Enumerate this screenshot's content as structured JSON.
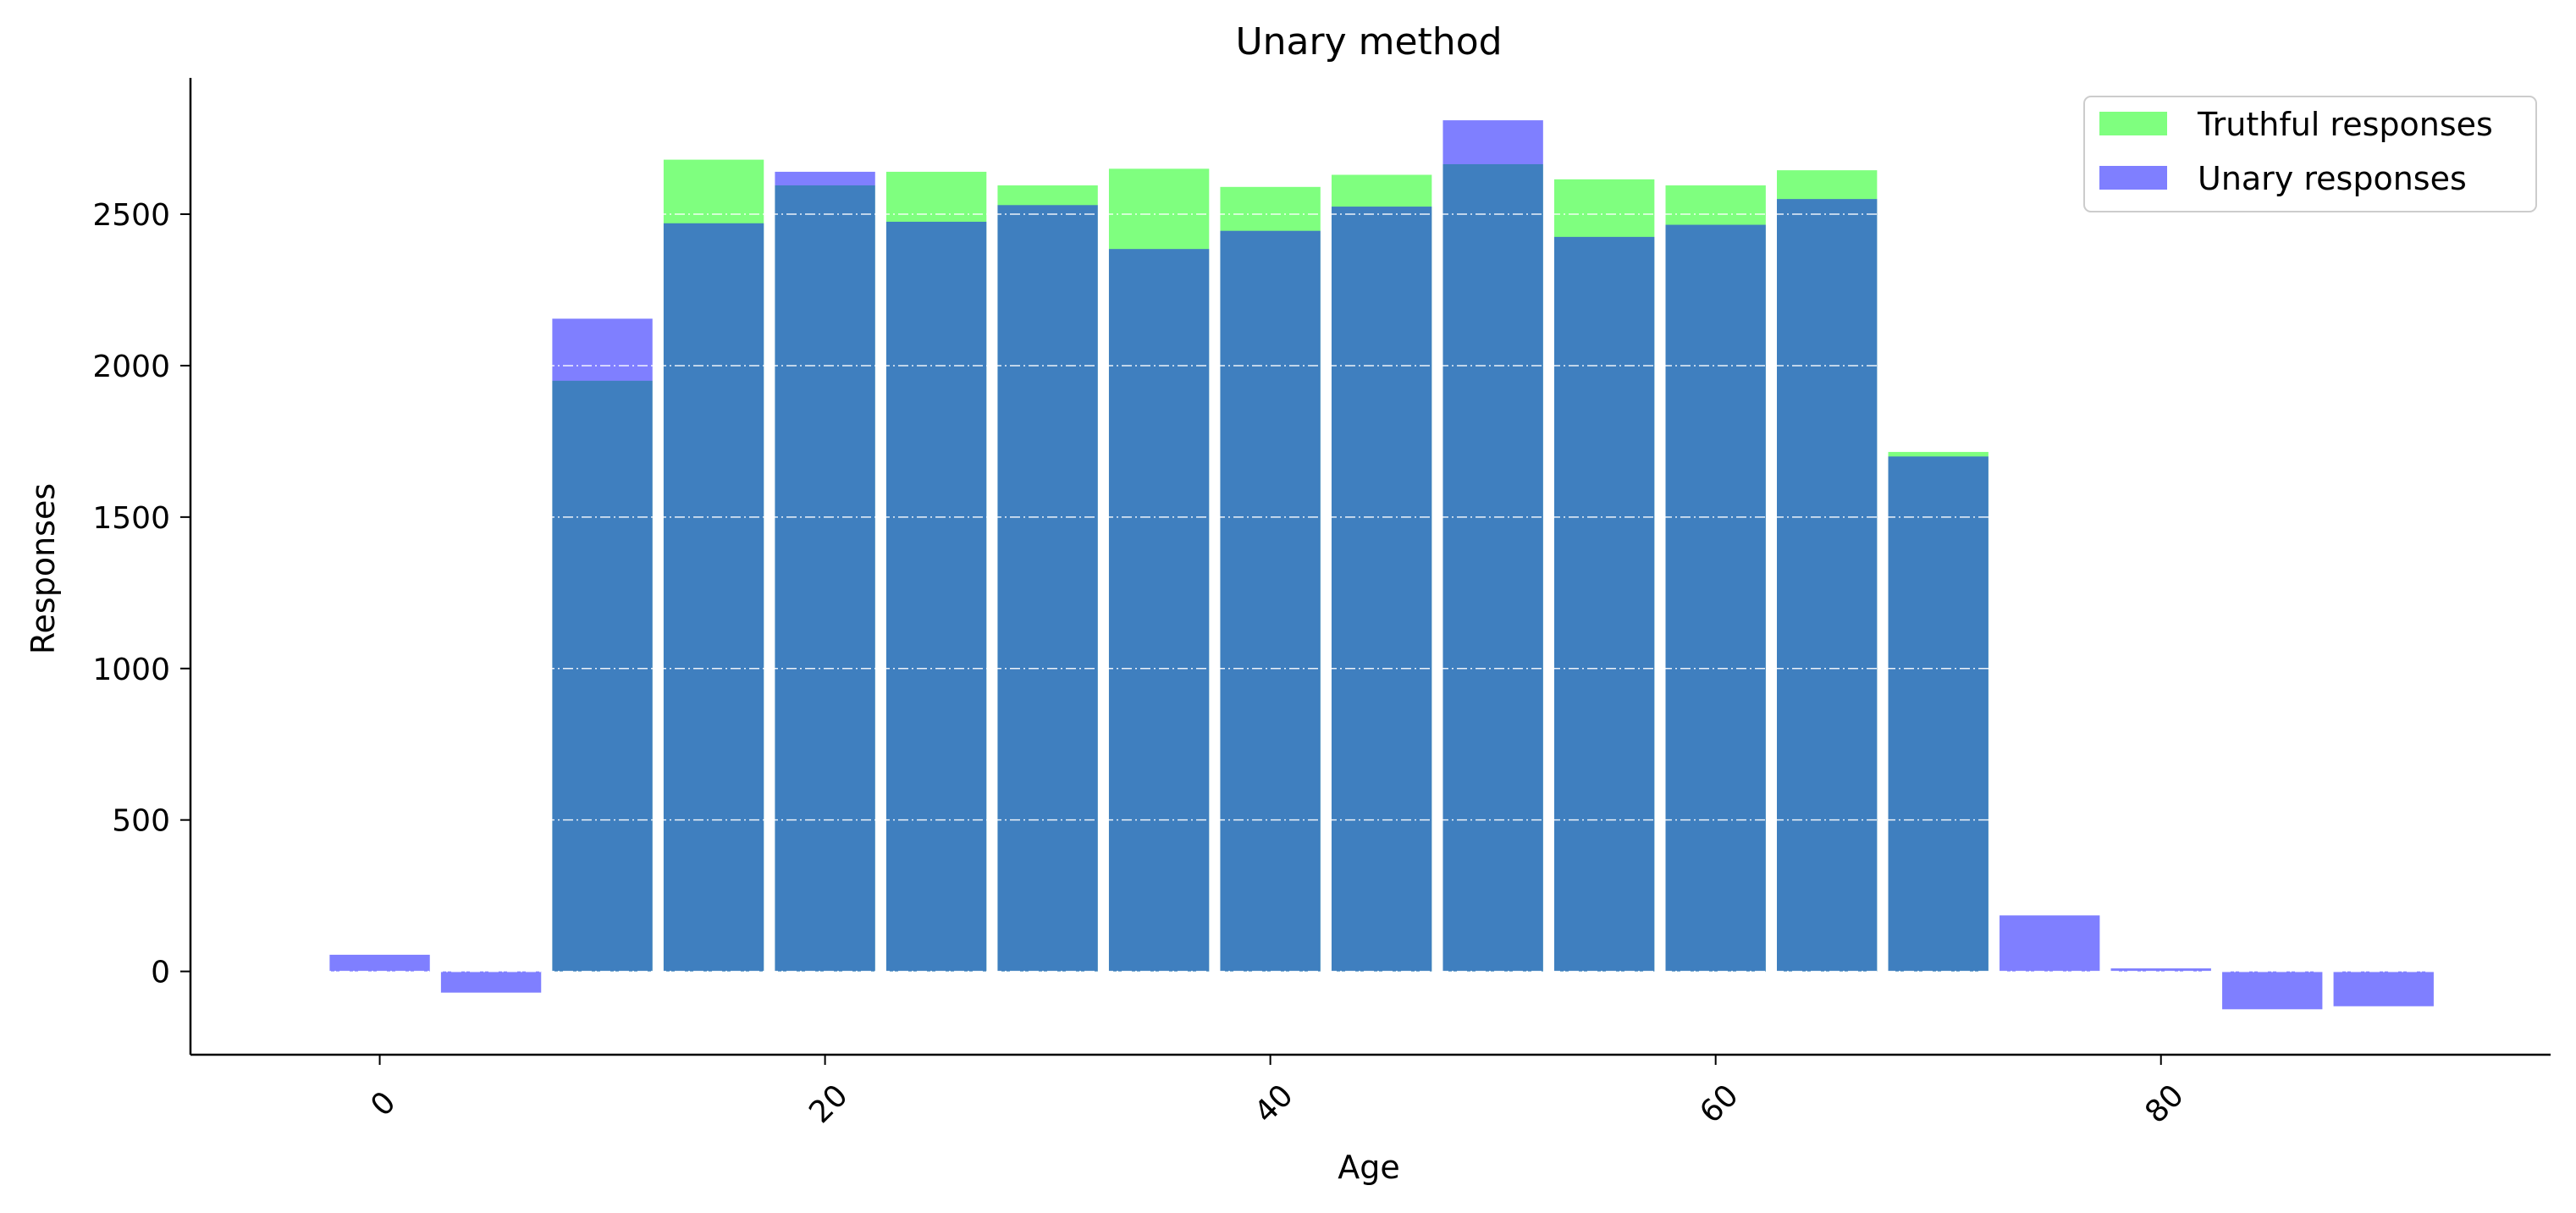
{
  "chart_data": {
    "type": "bar",
    "title": "Unary method",
    "xlabel": "Age",
    "ylabel": "Responses",
    "x": [
      0,
      5,
      10,
      15,
      20,
      25,
      30,
      35,
      40,
      45,
      50,
      55,
      60,
      65,
      70,
      75,
      80,
      85,
      90
    ],
    "series": [
      {
        "name": "Truthful responses",
        "color": "#00ff00",
        "opacity": 0.5,
        "values": [
          0,
          0,
          1950,
          2680,
          2595,
          2640,
          2595,
          2650,
          2590,
          2630,
          2665,
          2615,
          2595,
          2645,
          1715,
          0,
          0,
          0,
          0
        ]
      },
      {
        "name": "Unary responses",
        "color": "#0000ff",
        "opacity": 0.5,
        "values": [
          55,
          -70,
          2155,
          2470,
          2640,
          2475,
          2530,
          2385,
          2445,
          2525,
          2810,
          2425,
          2465,
          2550,
          1700,
          185,
          10,
          -125,
          -115
        ]
      }
    ],
    "xlim": [
      -8.5,
      97.5
    ],
    "ylim": [
      -275,
      2950
    ],
    "xticks": [
      "0",
      "20",
      "40",
      "60",
      "80"
    ],
    "xtick_values": [
      0,
      20,
      40,
      60,
      80
    ],
    "yticks": [
      "0",
      "500",
      "1000",
      "1500",
      "2000",
      "2500"
    ],
    "ytick_values": [
      0,
      500,
      1000,
      1500,
      2000,
      2500
    ],
    "xtick_rotation_deg": -45,
    "bar_width": 4.5,
    "grid": "y-dashdot",
    "legend_position": "top-right"
  }
}
